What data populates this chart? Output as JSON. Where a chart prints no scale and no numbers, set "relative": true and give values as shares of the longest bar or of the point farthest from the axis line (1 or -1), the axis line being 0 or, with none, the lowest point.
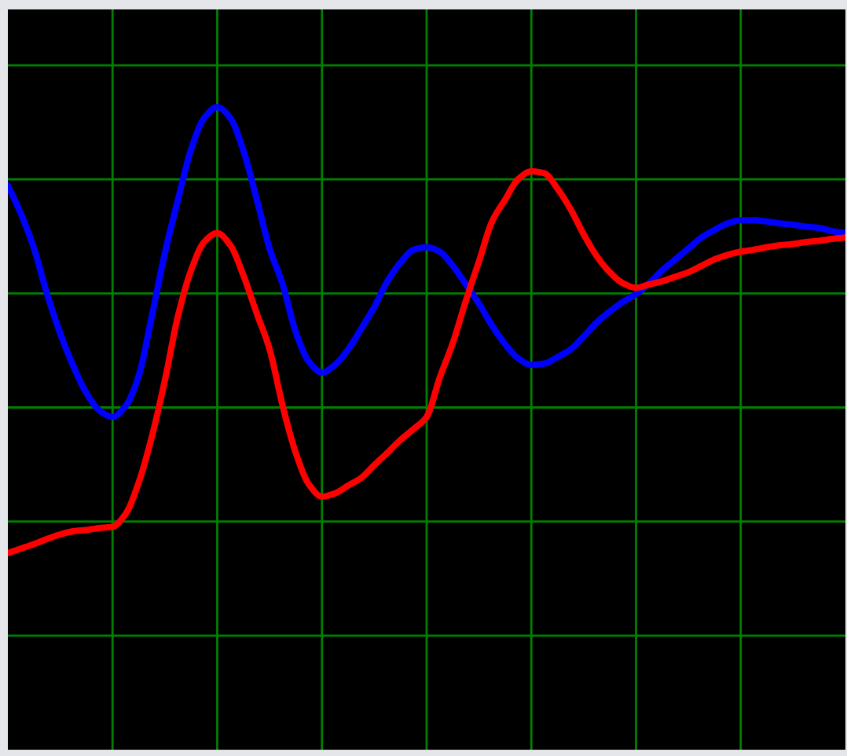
{
  "chart_data": {
    "type": "line",
    "relative": true,
    "grid": true,
    "categories": [
      null,
      null,
      null,
      null,
      null,
      null,
      null,
      null,
      null,
      null,
      null,
      null,
      null,
      null,
      null,
      null,
      null,
      null,
      null,
      null,
      null,
      null,
      null,
      null,
      null,
      null,
      null,
      null,
      null,
      null,
      null,
      null,
      null,
      null,
      null,
      null,
      null,
      null,
      null,
      null,
      null,
      null,
      null,
      null,
      null,
      null,
      null,
      null,
      null,
      null,
      null,
      null,
      null,
      null,
      null,
      null,
      null,
      null,
      null,
      null,
      null,
      null,
      null,
      null,
      null
    ],
    "series": [
      {
        "color": "#0000ff",
        "values": [
          0.878,
          0.834,
          0.78,
          0.709,
          0.648,
          0.597,
          0.555,
          0.528,
          0.518,
          0.535,
          0.582,
          0.675,
          0.773,
          0.856,
          0.934,
          0.983,
          1,
          0.983,
          0.932,
          0.858,
          0.78,
          0.724,
          0.65,
          0.604,
          0.587,
          0.599,
          0.623,
          0.655,
          0.689,
          0.729,
          0.758,
          0.778,
          0.782,
          0.775,
          0.753,
          0.724,
          0.694,
          0.66,
          0.631,
          0.609,
          0.599,
          0.601,
          0.611,
          0.623,
          0.643,
          0.665,
          0.682,
          0.697,
          0.709,
          0.726,
          0.746,
          0.763,
          0.78,
          0.797,
          0.809,
          0.819,
          0.824,
          0.824,
          0.822,
          0.819,
          0.817,
          0.814,
          0.812,
          0.807,
          0.804
        ]
      },
      {
        "color": "#ff0000",
        "values": [
          0.306,
          0.313,
          0.32,
          0.328,
          0.335,
          0.34,
          0.342,
          0.345,
          0.347,
          0.367,
          0.416,
          0.487,
          0.575,
          0.675,
          0.746,
          0.79,
          0.804,
          0.785,
          0.738,
          0.68,
          0.623,
          0.535,
          0.462,
          0.413,
          0.394,
          0.399,
          0.411,
          0.423,
          0.443,
          0.462,
          0.482,
          0.499,
          0.518,
          0.579,
          0.633,
          0.699,
          0.76,
          0.822,
          0.856,
          0.888,
          0.9,
          0.897,
          0.873,
          0.841,
          0.802,
          0.768,
          0.743,
          0.726,
          0.719,
          0.724,
          0.729,
          0.736,
          0.743,
          0.753,
          0.763,
          0.77,
          0.775,
          0.778,
          0.782,
          0.785,
          0.787,
          0.79,
          0.792,
          0.795,
          0.797
        ]
      }
    ]
  }
}
